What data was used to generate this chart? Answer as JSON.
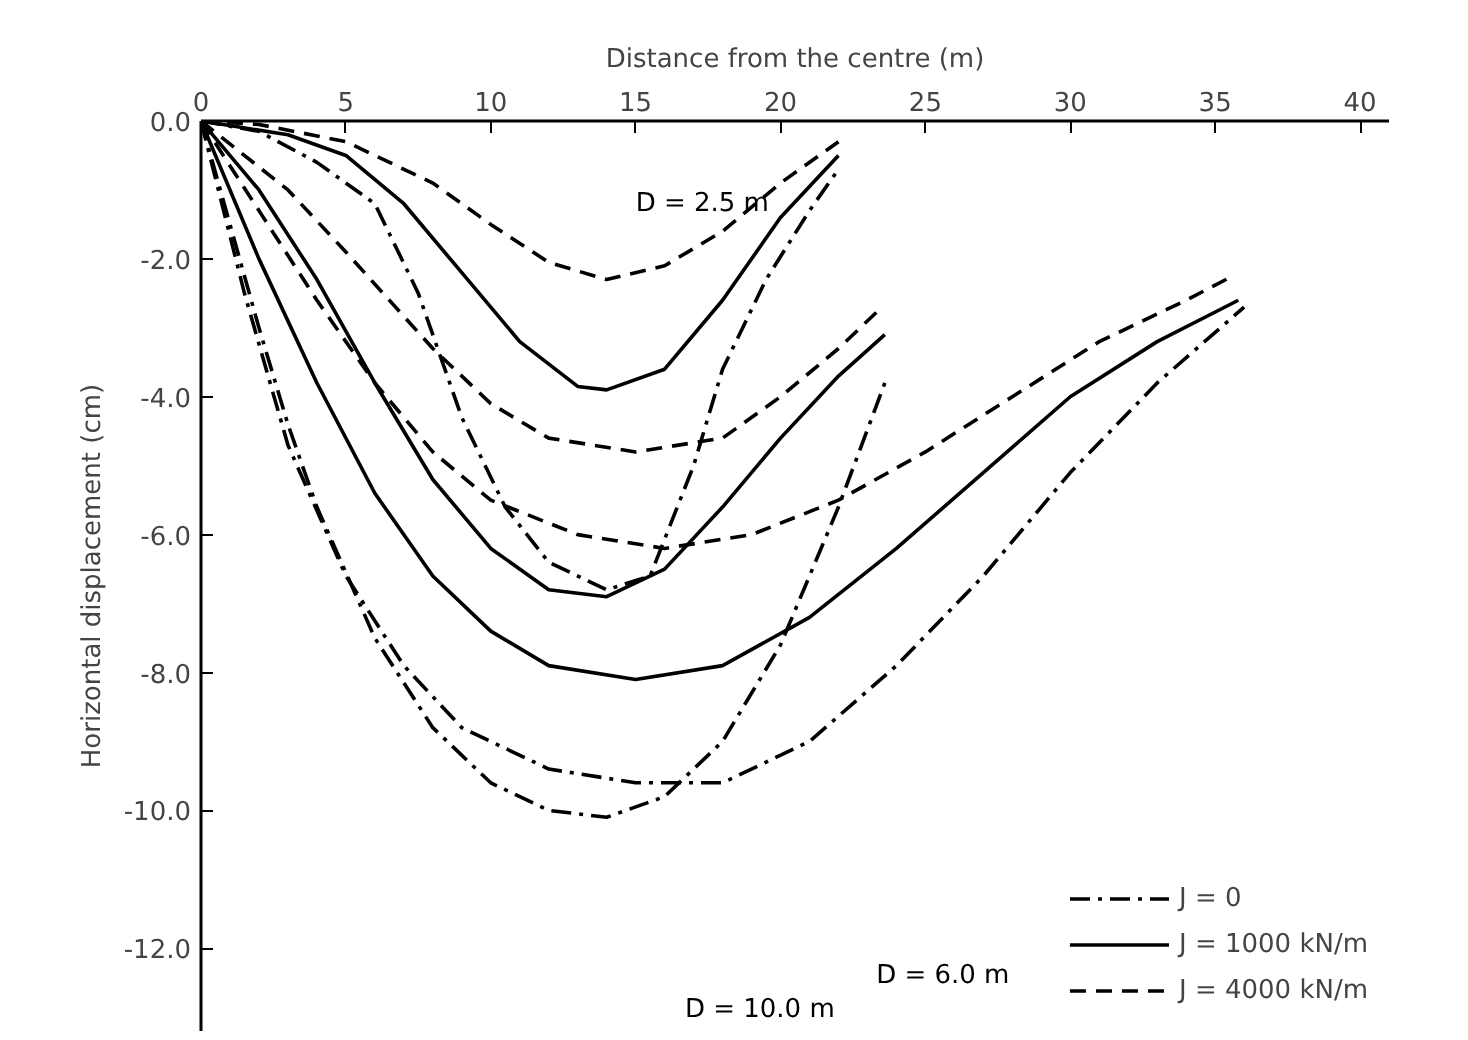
{
  "chart_data": {
    "type": "line",
    "xlabel": "Distance from the centre (m)",
    "ylabel": "Horizontal displacement (cm)",
    "xlim": [
      0,
      41
    ],
    "xticks": [
      0,
      5,
      10,
      15,
      20,
      25,
      30,
      35,
      40
    ],
    "ylim": [
      -13.2,
      0
    ],
    "yticks": [
      {
        "value": 0,
        "label": "0.0"
      },
      {
        "value": -2,
        "label": "-2.0"
      },
      {
        "value": -4,
        "label": "-4.0"
      },
      {
        "value": -6,
        "label": "-6.0"
      },
      {
        "value": -8,
        "label": "-8.0"
      },
      {
        "value": -10,
        "label": "-10.0"
      },
      {
        "value": -12,
        "label": "-12.0"
      }
    ],
    "grid": false,
    "legend": "bottom right",
    "marker": "none",
    "series": [
      {
        "name": "J = 0",
        "color": "#000000",
        "line_style": "dashdot",
        "x": [
          0,
          2,
          4,
          6,
          7.5,
          9,
          10.5,
          12,
          14,
          15.5,
          17,
          18,
          19.5,
          21,
          22
        ],
        "values": [
          0,
          -0.15,
          -0.6,
          -1.2,
          -2.5,
          -4.3,
          -5.6,
          -6.4,
          -6.8,
          -6.6,
          -5.0,
          -3.6,
          -2.3,
          -1.3,
          -0.7
        ]
      },
      {
        "name": "J = 1000 kN/m",
        "color": "#000000",
        "line_style": "solid",
        "x": [
          0,
          3,
          5,
          7,
          9,
          11,
          13,
          14,
          16,
          18,
          20,
          22
        ],
        "values": [
          0,
          -0.2,
          -0.5,
          -1.2,
          -2.2,
          -3.2,
          -3.85,
          -3.9,
          -3.6,
          -2.6,
          -1.4,
          -0.5
        ]
      },
      {
        "name": "J = 4000 kN/m",
        "color": "#000000",
        "line_style": "dashed",
        "x": [
          0,
          2,
          5,
          8,
          10,
          12,
          14,
          16,
          18,
          20,
          22
        ],
        "values": [
          0,
          -0.05,
          -0.3,
          -0.9,
          -1.5,
          -2.05,
          -2.3,
          -2.1,
          -1.6,
          -0.9,
          -0.3
        ]
      },
      {
        "color": "#000000",
        "line_style": "dashdot",
        "x": [
          0,
          1,
          2,
          3,
          4,
          6,
          8,
          10,
          12,
          14,
          16,
          18,
          20,
          22,
          23.6
        ],
        "values": [
          0,
          -1.5,
          -3.0,
          -4.4,
          -5.6,
          -7.5,
          -8.8,
          -9.6,
          -10.0,
          -10.1,
          -9.8,
          -9.0,
          -7.6,
          -5.6,
          -3.8
        ]
      },
      {
        "color": "#000000",
        "line_style": "solid",
        "x": [
          0,
          2,
          4,
          6,
          8,
          10,
          12,
          14,
          16,
          18,
          20,
          22,
          23.6
        ],
        "values": [
          0,
          -1.0,
          -2.3,
          -3.8,
          -5.2,
          -6.2,
          -6.8,
          -6.9,
          -6.5,
          -5.6,
          -4.6,
          -3.7,
          -3.1
        ]
      },
      {
        "color": "#000000",
        "line_style": "dashed",
        "x": [
          0,
          3,
          5,
          8,
          10,
          12,
          15,
          18,
          20,
          22,
          23.5
        ],
        "values": [
          0,
          -1.0,
          -1.9,
          -3.3,
          -4.1,
          -4.6,
          -4.8,
          -4.6,
          -4.0,
          -3.3,
          -2.7
        ]
      },
      {
        "color": "#000000",
        "line_style": "dashdot",
        "x": [
          0,
          1.5,
          3,
          5,
          7,
          9,
          12,
          15,
          18,
          21,
          24,
          27,
          30,
          33,
          36
        ],
        "values": [
          0,
          -2.5,
          -4.7,
          -6.6,
          -7.9,
          -8.8,
          -9.4,
          -9.6,
          -9.6,
          -9.0,
          -7.9,
          -6.6,
          -5.1,
          -3.8,
          -2.7
        ]
      },
      {
        "color": "#000000",
        "line_style": "solid",
        "x": [
          0,
          2,
          4,
          6,
          8,
          10,
          12,
          15,
          18,
          21,
          24,
          27,
          30,
          33,
          35.8
        ],
        "values": [
          0,
          -2.0,
          -3.8,
          -5.4,
          -6.6,
          -7.4,
          -7.9,
          -8.1,
          -7.9,
          -7.2,
          -6.2,
          -5.1,
          -4.0,
          -3.2,
          -2.6
        ]
      },
      {
        "color": "#000000",
        "line_style": "dashed",
        "x": [
          0,
          2,
          4,
          6,
          8,
          10,
          13,
          16,
          19,
          22,
          25,
          28,
          31,
          34,
          35.6
        ],
        "values": [
          0,
          -1.3,
          -2.6,
          -3.8,
          -4.8,
          -5.5,
          -6.0,
          -6.2,
          -6.0,
          -5.5,
          -4.8,
          -4.0,
          -3.2,
          -2.6,
          -2.25
        ]
      }
    ],
    "annotations": [
      "D = 2.5 m",
      "D = 6.0 m",
      "D = 10.0 m"
    ]
  }
}
